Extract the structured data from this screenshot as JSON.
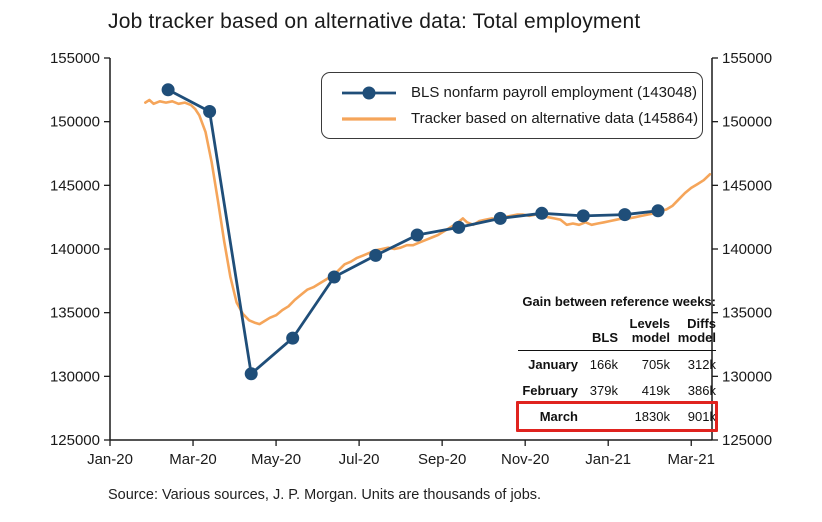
{
  "title": "Job tracker based on alternative data: Total employment",
  "source_note": "Source: Various sources, J. P. Morgan. Units are thousands of jobs.",
  "inset_table": {
    "heading": "Gain between reference weeks:",
    "col_headers": [
      "BLS",
      "Levels\nmodel",
      "Diffs\nmodel"
    ],
    "rows": [
      {
        "label": "January",
        "bls": "166k",
        "levels": "705k",
        "diffs": "312k"
      },
      {
        "label": "February",
        "bls": "379k",
        "levels": "419k",
        "diffs": "386k"
      },
      {
        "label": "March",
        "bls": "",
        "levels": "1830k",
        "diffs": "901k"
      }
    ],
    "highlight_row": "March",
    "highlight_color": "#e0231f"
  },
  "chart_data": {
    "type": "line",
    "title": "Job tracker based on alternative data: Total employment",
    "xlabel": "",
    "ylabel": "",
    "x_unit": "months since Jan-2020",
    "xlim": [
      0,
      14.5
    ],
    "ylim": [
      125000,
      155000
    ],
    "yticks": [
      125000,
      130000,
      135000,
      140000,
      145000,
      150000,
      155000
    ],
    "xticks": [
      0,
      2,
      4,
      6,
      8,
      10,
      12,
      14
    ],
    "xtick_labels": [
      "Jan-20",
      "Mar-20",
      "May-20",
      "Jul-20",
      "Sep-20",
      "Nov-20",
      "Jan-21",
      "Mar-21"
    ],
    "grid": false,
    "legend_position": "upper center",
    "axis_color": "#1a1a1a",
    "series": [
      {
        "name": "BLS nonfarm payroll employment (143048)",
        "color": "#1f4e79",
        "marker": "circle",
        "line_width": 2.8,
        "points": [
          [
            1.4,
            152500
          ],
          [
            2.4,
            150800
          ],
          [
            3.4,
            130200
          ],
          [
            4.4,
            133000
          ],
          [
            5.4,
            137800
          ],
          [
            6.4,
            139500
          ],
          [
            7.4,
            141100
          ],
          [
            8.4,
            141700
          ],
          [
            9.4,
            142400
          ],
          [
            10.4,
            142800
          ],
          [
            11.4,
            142600
          ],
          [
            12.4,
            142700
          ],
          [
            13.2,
            143000
          ]
        ]
      },
      {
        "name": "Tracker based on alternative data (145864)",
        "color": "#f5a55a",
        "marker": "none",
        "line_width": 2.6,
        "points": [
          [
            0.85,
            151500
          ],
          [
            0.95,
            151700
          ],
          [
            1.05,
            151400
          ],
          [
            1.2,
            151600
          ],
          [
            1.35,
            151500
          ],
          [
            1.5,
            151600
          ],
          [
            1.65,
            151400
          ],
          [
            1.8,
            151500
          ],
          [
            1.95,
            151300
          ],
          [
            2.05,
            151000
          ],
          [
            2.15,
            150500
          ],
          [
            2.3,
            149200
          ],
          [
            2.45,
            146800
          ],
          [
            2.6,
            143800
          ],
          [
            2.75,
            140600
          ],
          [
            2.9,
            137800
          ],
          [
            3.05,
            135800
          ],
          [
            3.2,
            134900
          ],
          [
            3.35,
            134400
          ],
          [
            3.5,
            134200
          ],
          [
            3.6,
            134100
          ],
          [
            3.7,
            134300
          ],
          [
            3.85,
            134600
          ],
          [
            4.0,
            134800
          ],
          [
            4.15,
            135200
          ],
          [
            4.3,
            135500
          ],
          [
            4.45,
            136000
          ],
          [
            4.6,
            136400
          ],
          [
            4.75,
            136800
          ],
          [
            4.9,
            137000
          ],
          [
            5.05,
            137300
          ],
          [
            5.2,
            137600
          ],
          [
            5.35,
            137900
          ],
          [
            5.5,
            138300
          ],
          [
            5.65,
            138800
          ],
          [
            5.8,
            139000
          ],
          [
            5.95,
            139300
          ],
          [
            6.1,
            139500
          ],
          [
            6.25,
            139700
          ],
          [
            6.4,
            139900
          ],
          [
            6.55,
            140000
          ],
          [
            6.7,
            140100
          ],
          [
            6.85,
            140000
          ],
          [
            7.0,
            140100
          ],
          [
            7.15,
            140300
          ],
          [
            7.3,
            140300
          ],
          [
            7.45,
            140500
          ],
          [
            7.6,
            140700
          ],
          [
            7.75,
            140900
          ],
          [
            7.9,
            141100
          ],
          [
            8.05,
            141400
          ],
          [
            8.2,
            141700
          ],
          [
            8.35,
            142000
          ],
          [
            8.5,
            142400
          ],
          [
            8.6,
            142100
          ],
          [
            8.75,
            141900
          ],
          [
            8.9,
            142200
          ],
          [
            9.05,
            142300
          ],
          [
            9.2,
            142400
          ],
          [
            9.35,
            142300
          ],
          [
            9.5,
            142500
          ],
          [
            9.65,
            142600
          ],
          [
            9.8,
            142700
          ],
          [
            9.95,
            142700
          ],
          [
            10.1,
            142600
          ],
          [
            10.25,
            142700
          ],
          [
            10.4,
            142600
          ],
          [
            10.55,
            142500
          ],
          [
            10.7,
            142400
          ],
          [
            10.85,
            142300
          ],
          [
            11.0,
            141900
          ],
          [
            11.15,
            142000
          ],
          [
            11.3,
            141900
          ],
          [
            11.45,
            142100
          ],
          [
            11.6,
            141900
          ],
          [
            11.75,
            142000
          ],
          [
            11.9,
            142100
          ],
          [
            12.05,
            142200
          ],
          [
            12.2,
            142300
          ],
          [
            12.35,
            142400
          ],
          [
            12.5,
            142400
          ],
          [
            12.65,
            142500
          ],
          [
            12.8,
            142600
          ],
          [
            12.95,
            142700
          ],
          [
            13.1,
            142800
          ],
          [
            13.25,
            143000
          ],
          [
            13.4,
            143100
          ],
          [
            13.55,
            143400
          ],
          [
            13.7,
            143900
          ],
          [
            13.85,
            144400
          ],
          [
            14.0,
            144800
          ],
          [
            14.15,
            145100
          ],
          [
            14.3,
            145400
          ],
          [
            14.45,
            145864
          ]
        ]
      }
    ]
  }
}
